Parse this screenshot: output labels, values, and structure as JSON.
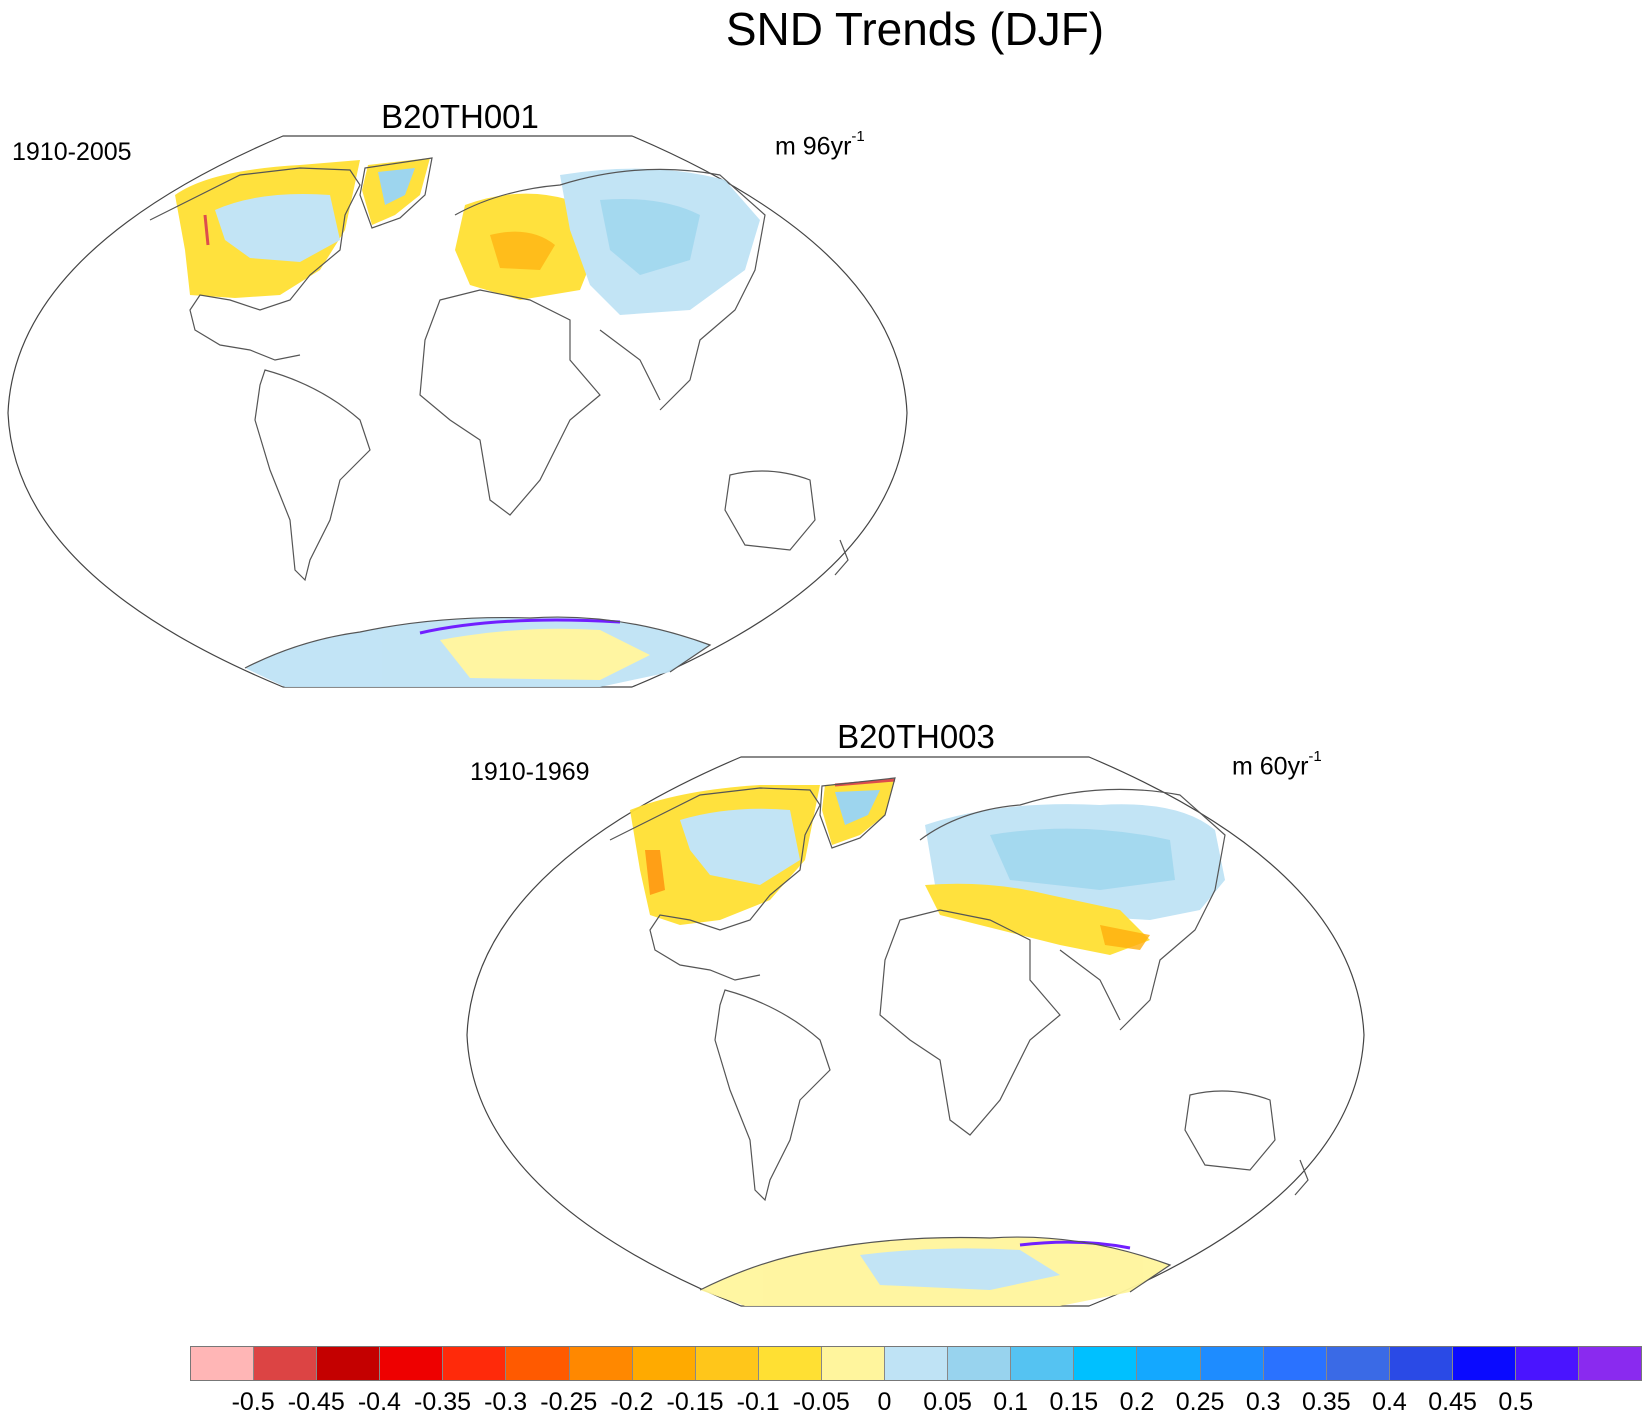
{
  "title": "SND Trends (DJF)",
  "panels": [
    {
      "name": "B20TH001",
      "period": "1910-2005",
      "units_base": "m 96yr",
      "units_exp": "-1"
    },
    {
      "name": "B20TH003",
      "period": "1910-1969",
      "units_base": "m 60yr",
      "units_exp": "-1"
    }
  ],
  "colorbar": {
    "colors": [
      "#ffb6b6",
      "#dc4444",
      "#c40000",
      "#ee0000",
      "#ff2a0a",
      "#ff5a00",
      "#ff8800",
      "#ffaa00",
      "#ffc61a",
      "#ffe033",
      "#fff59d",
      "#bfe3f5",
      "#98d3ee",
      "#55c3f2",
      "#00c0ff",
      "#14a8ff",
      "#1e8cff",
      "#2a72ff",
      "#3a6ae6",
      "#2a4ae6",
      "#0a0aff",
      "#4a14ff",
      "#8a2aef"
    ],
    "ticks": [
      "-0.5",
      "-0.45",
      "-0.4",
      "-0.35",
      "-0.3",
      "-0.25",
      "-0.2",
      "-0.15",
      "-0.1",
      "-0.05",
      "0",
      "0.05",
      "0.1",
      "0.15",
      "0.2",
      "0.25",
      "0.3",
      "0.35",
      "0.4",
      "0.45",
      "0.5"
    ]
  },
  "map_palette": {
    "coast": "#555555",
    "frame": "#444444",
    "yellow": "#ffe033",
    "pale_yellow": "#fff59d",
    "orange": "#ffaa00",
    "light_blue": "#bfe3f5",
    "mid_blue": "#98d3ee",
    "red": "#dc4444",
    "purple": "#6a14ff"
  }
}
